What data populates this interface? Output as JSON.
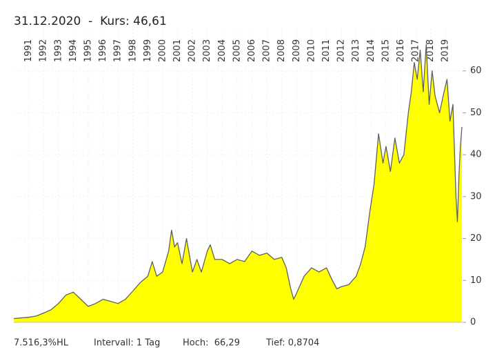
{
  "chart_data": {
    "type": "area",
    "title": "31.12.2020  -  Kurs: 46,61",
    "x": [
      1990.0,
      1991.0,
      1991.5,
      1992.0,
      1992.5,
      1993.0,
      1993.5,
      1994.0,
      1994.5,
      1995.0,
      1995.5,
      1996.0,
      1996.5,
      1997.0,
      1997.5,
      1998.0,
      1998.5,
      1999.0,
      1999.3,
      1999.6,
      2000.0,
      2000.4,
      2000.6,
      2000.8,
      2001.0,
      2001.3,
      2001.6,
      2001.8,
      2002.0,
      2002.3,
      2002.6,
      2003.0,
      2003.2,
      2003.5,
      2004.0,
      2004.5,
      2005.0,
      2005.5,
      2006.0,
      2006.5,
      2007.0,
      2007.5,
      2008.0,
      2008.3,
      2008.6,
      2008.8,
      2009.0,
      2009.5,
      2010.0,
      2010.5,
      2011.0,
      2011.4,
      2011.7,
      2012.0,
      2012.5,
      2013.0,
      2013.3,
      2013.6,
      2013.9,
      2014.2,
      2014.5,
      2014.8,
      2015.0,
      2015.3,
      2015.6,
      2015.9,
      2016.2,
      2016.5,
      2016.7,
      2016.9,
      2017.1,
      2017.3,
      2017.5,
      2017.7,
      2017.9,
      2018.1,
      2018.3,
      2018.6,
      2018.9,
      2019.1,
      2019.3,
      2019.5,
      2019.7,
      2019.8,
      2019.9,
      2020.0,
      2020.1
    ],
    "values": [
      0.9,
      1.2,
      1.5,
      2.2,
      3,
      4.5,
      6.5,
      7.2,
      5.5,
      3.8,
      4.5,
      5.5,
      5,
      4.5,
      5.5,
      7.5,
      9.5,
      11,
      14.5,
      11,
      12,
      17,
      22,
      18,
      19,
      14,
      20,
      16,
      12,
      15,
      12,
      17,
      18.5,
      15,
      15,
      14,
      15,
      14.5,
      17,
      16,
      16.5,
      15,
      15.5,
      13,
      8,
      5.5,
      7,
      11,
      13,
      12,
      13,
      10,
      8,
      8.5,
      9,
      11,
      14,
      18,
      26,
      33,
      45,
      38,
      42,
      36,
      44,
      38,
      40,
      50,
      55,
      62,
      58,
      65,
      55,
      66.29,
      52,
      60,
      54,
      50,
      55,
      58,
      48,
      52,
      30,
      24,
      35,
      42,
      46.61
    ],
    "color": "#ffff00",
    "line_color": "#5f5f5f",
    "xlim": [
      1990.0,
      2020.1
    ],
    "xticks": [
      1991,
      1992,
      1993,
      1994,
      1995,
      1996,
      1997,
      1998,
      1999,
      2000,
      2001,
      2002,
      2003,
      2004,
      2005,
      2006,
      2007,
      2008,
      2009,
      2010,
      2011,
      2012,
      2013,
      2014,
      2015,
      2016,
      2017,
      2018,
      2019
    ],
    "ylim": [
      0,
      70
    ],
    "yticks": [
      0,
      10,
      20,
      30,
      40,
      50,
      60
    ],
    "grid": true,
    "footer": [
      "7.516,3%HL",
      "Intervall: 1 Tag",
      "Hoch:  66,29",
      "Tief: 0,8704"
    ]
  }
}
